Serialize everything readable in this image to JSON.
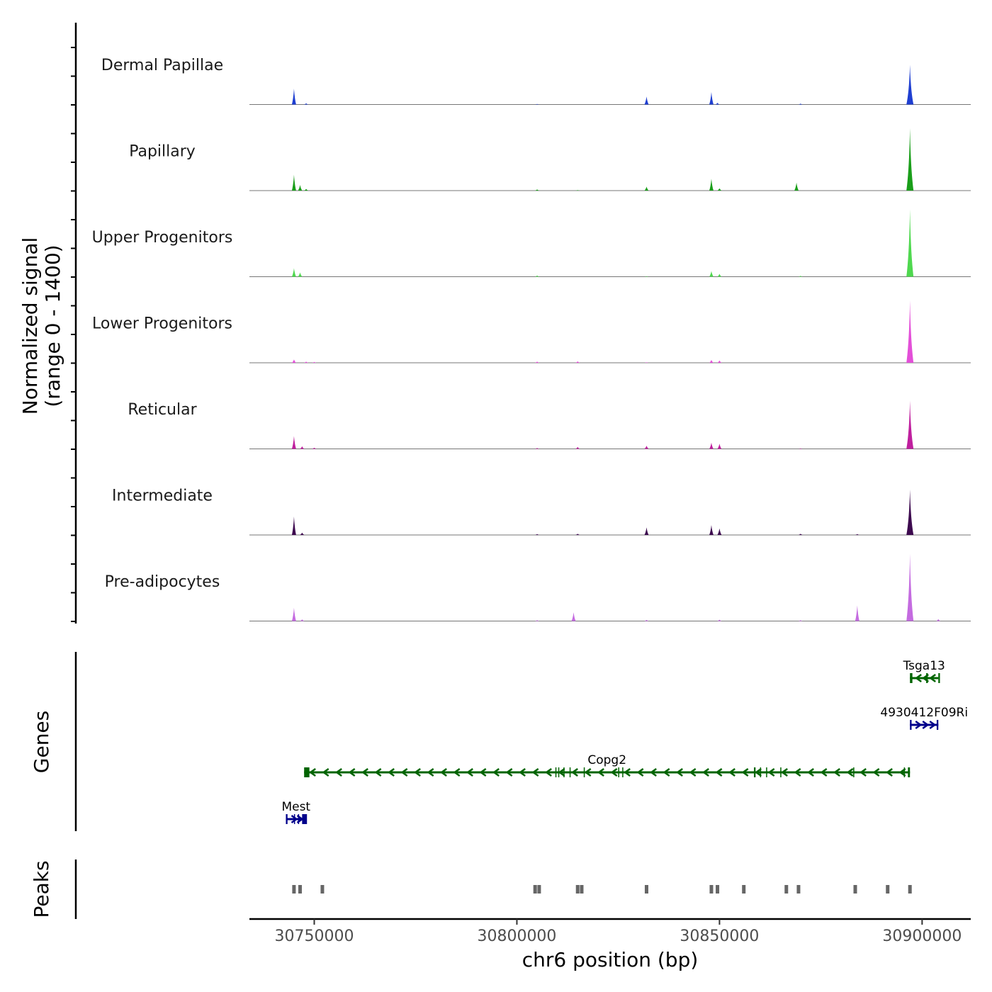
{
  "chart_data": {
    "type": "genome-track",
    "chromosome": "chr6",
    "xlim": [
      30734000,
      30912000
    ],
    "x_ticks": [
      30750000,
      30800000,
      30850000,
      30900000
    ],
    "x_tick_labels": [
      "30750000",
      "30800000",
      "30850000",
      "30900000"
    ],
    "xlabel": "chr6 position (bp)",
    "coverage": {
      "ylabel_line1": "Normalized signal",
      "ylabel_line2": "(range 0 - 1400)",
      "ylim": [
        0,
        1400
      ],
      "tracks": [
        {
          "name": "Dermal Papillae",
          "color": "#1f3fd1",
          "peaks": [
            [
              30745000,
              560
            ],
            [
              30748000,
              40
            ],
            [
              30805000,
              20
            ],
            [
              30832000,
              280
            ],
            [
              30848000,
              440
            ],
            [
              30849500,
              60
            ],
            [
              30870000,
              30
            ],
            [
              30897000,
              1400
            ]
          ]
        },
        {
          "name": "Papillary",
          "color": "#1a9e1a",
          "peaks": [
            [
              30745000,
              560
            ],
            [
              30746500,
              200
            ],
            [
              30748000,
              60
            ],
            [
              30805000,
              40
            ],
            [
              30815000,
              20
            ],
            [
              30832000,
              140
            ],
            [
              30848000,
              420
            ],
            [
              30850000,
              80
            ],
            [
              30869000,
              280
            ],
            [
              30897000,
              2200
            ]
          ]
        },
        {
          "name": "Upper Progenitors",
          "color": "#4fd84f",
          "peaks": [
            [
              30745000,
              300
            ],
            [
              30746500,
              150
            ],
            [
              30805000,
              40
            ],
            [
              30832000,
              20
            ],
            [
              30848000,
              200
            ],
            [
              30850000,
              100
            ],
            [
              30870000,
              30
            ],
            [
              30897000,
              2700
            ]
          ]
        },
        {
          "name": "Lower Progenitors",
          "color": "#e34fd8",
          "peaks": [
            [
              30745000,
              120
            ],
            [
              30748000,
              40
            ],
            [
              30750000,
              30
            ],
            [
              30805000,
              40
            ],
            [
              30815000,
              50
            ],
            [
              30832000,
              20
            ],
            [
              30848000,
              100
            ],
            [
              30850000,
              80
            ],
            [
              30897000,
              2200
            ]
          ]
        },
        {
          "name": "Reticular",
          "color": "#bf1f9e",
          "peaks": [
            [
              30745000,
              450
            ],
            [
              30747000,
              90
            ],
            [
              30750000,
              40
            ],
            [
              30805000,
              30
            ],
            [
              30815000,
              70
            ],
            [
              30832000,
              110
            ],
            [
              30848000,
              220
            ],
            [
              30850000,
              180
            ],
            [
              30870000,
              20
            ],
            [
              30897000,
              1700
            ]
          ]
        },
        {
          "name": "Intermediate",
          "color": "#3d0a4f",
          "peaks": [
            [
              30745000,
              650
            ],
            [
              30747000,
              80
            ],
            [
              30805000,
              30
            ],
            [
              30815000,
              40
            ],
            [
              30832000,
              270
            ],
            [
              30848000,
              350
            ],
            [
              30850000,
              230
            ],
            [
              30870000,
              40
            ],
            [
              30884000,
              30
            ],
            [
              30897000,
              1600
            ]
          ]
        },
        {
          "name": "Pre-adipocytes",
          "color": "#c46be0",
          "peaks": [
            [
              30745000,
              470
            ],
            [
              30747000,
              60
            ],
            [
              30805000,
              30
            ],
            [
              30814000,
              310
            ],
            [
              30832000,
              40
            ],
            [
              30850000,
              50
            ],
            [
              30870000,
              30
            ],
            [
              30884000,
              550
            ],
            [
              30897000,
              2600
            ],
            [
              30904000,
              70
            ]
          ]
        }
      ]
    },
    "genes": {
      "ylabel": "Genes",
      "items": [
        {
          "name": "Tsga13",
          "start": 30897000,
          "end": 30904000,
          "strand": "-",
          "color": "#006400",
          "row": 1,
          "exons": [
            [
              30897000,
              30897600
            ],
            [
              30901000,
              30901400
            ],
            [
              30904000,
              30904400
            ]
          ]
        },
        {
          "name": "4930412F09Rik",
          "label": "4930412F09Ri",
          "start": 30897000,
          "end": 30904000,
          "strand": "+",
          "color": "#00008b",
          "row": 2,
          "exons": [
            [
              30897000,
              30897400
            ],
            [
              30903600,
              30904000
            ]
          ]
        },
        {
          "name": "Copg2",
          "start": 30747500,
          "end": 30897000,
          "strand": "-",
          "color": "#006400",
          "row": 3,
          "exons": [
            [
              30747500,
              30748800
            ],
            [
              30809500,
              30809700
            ],
            [
              30810200,
              30810400
            ],
            [
              30811500,
              30811700
            ],
            [
              30813000,
              30813200
            ],
            [
              30816500,
              30816700
            ],
            [
              30825000,
              30825200
            ],
            [
              30826000,
              30826200
            ],
            [
              30858500,
              30858900
            ],
            [
              30860000,
              30860200
            ],
            [
              30861500,
              30861700
            ],
            [
              30865000,
              30865200
            ],
            [
              30883000,
              30883200
            ],
            [
              30895500,
              30895700
            ],
            [
              30896500,
              30897000
            ]
          ]
        },
        {
          "name": "Mest",
          "start": 30743000,
          "end": 30748000,
          "strand": "+",
          "color": "#00008b",
          "row": 4,
          "exons": [
            [
              30743000,
              30743400
            ],
            [
              30745000,
              30745200
            ],
            [
              30746000,
              30746200
            ],
            [
              30747000,
              30748200
            ]
          ]
        }
      ]
    },
    "peaks": {
      "ylabel": "Peaks",
      "regions": [
        30745000,
        30746500,
        30752000,
        30804500,
        30805500,
        30815000,
        30816000,
        30832000,
        30848000,
        30849500,
        30856000,
        30866500,
        30869500,
        30883500,
        30891500,
        30897000
      ],
      "width_bp": 900
    }
  }
}
